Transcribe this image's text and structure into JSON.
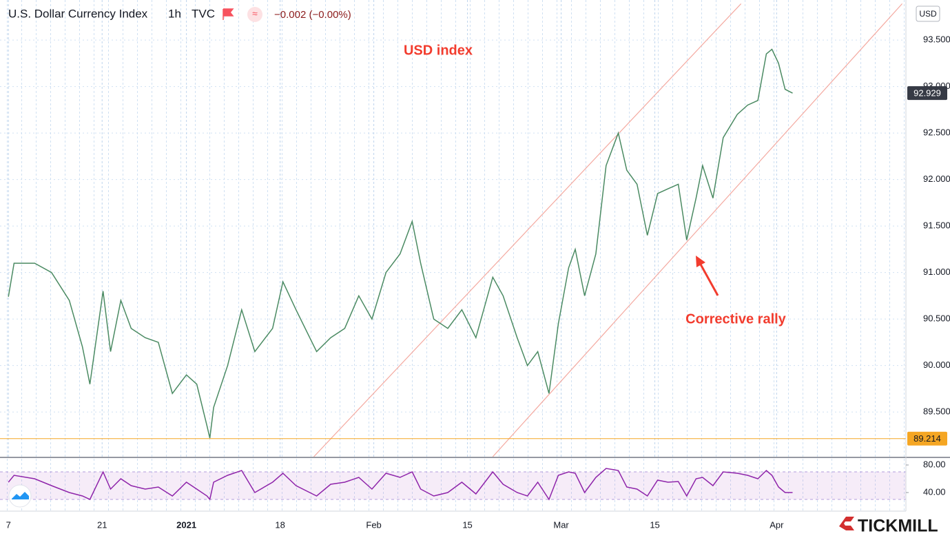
{
  "header": {
    "title": "U.S. Dollar Currency Index",
    "interval": "1h",
    "source": "TVC",
    "change": "−0.002 (−0.00%)",
    "currency": "USD",
    "brand": "TICKMILL"
  },
  "chart_data": [
    {
      "type": "line",
      "color": "#4a8a62",
      "annotations": [
        "USD index",
        "Corrective rally"
      ],
      "annotation_color": "#f23c2e",
      "x": [
        0.0,
        0.6,
        2.8,
        4.6,
        6.5,
        7.9,
        8.7,
        10.1,
        10.9,
        12.0,
        13.1,
        14.6,
        16.0,
        17.5,
        19.0,
        20.1,
        21.2,
        21.5,
        21.9,
        23.4,
        24.9,
        26.3,
        28.2,
        29.3,
        30.7,
        32.9,
        34.4,
        35.9,
        37.4,
        38.8,
        40.3,
        41.8,
        43.1,
        44.0,
        45.4,
        46.9,
        48.4,
        49.9,
        51.7,
        52.8,
        54.3,
        55.4,
        56.5,
        57.7,
        58.7,
        59.8,
        60.5,
        61.5,
        62.7,
        63.8,
        65.1,
        66.0,
        67.1,
        68.2,
        69.3,
        70.4,
        71.5,
        72.4,
        73.4,
        74.1,
        75.2,
        76.3,
        77.8,
        78.9,
        80.0,
        80.9,
        81.5,
        82.2,
        82.9,
        83.7
      ],
      "values": [
        90.74,
        91.1,
        91.1,
        91.0,
        90.7,
        90.2,
        89.8,
        90.8,
        90.15,
        90.7,
        90.4,
        90.3,
        90.25,
        89.7,
        89.9,
        89.8,
        89.35,
        89.22,
        89.55,
        90.0,
        90.6,
        90.15,
        90.4,
        90.9,
        90.6,
        90.15,
        90.3,
        90.4,
        90.75,
        90.5,
        91.0,
        91.2,
        91.55,
        91.1,
        90.5,
        90.4,
        90.6,
        90.3,
        90.95,
        90.75,
        90.3,
        90.0,
        90.15,
        89.7,
        90.45,
        91.05,
        91.25,
        90.75,
        91.2,
        92.15,
        92.5,
        92.1,
        91.95,
        91.4,
        91.85,
        91.9,
        91.95,
        91.35,
        91.8,
        92.15,
        91.8,
        92.45,
        92.7,
        92.8,
        92.85,
        93.35,
        93.4,
        93.25,
        92.97,
        92.929
      ],
      "last_color": "#363a45",
      "hline": {
        "value": 89.214,
        "color": "#f5a623"
      },
      "channels": [
        {
          "x": [
            32.6,
            78.2
          ],
          "y": [
            89.02,
            93.89
          ]
        },
        {
          "x": [
            51.7,
            95.4
          ],
          "y": [
            89.02,
            93.89
          ]
        }
      ],
      "channel_color": "#f4a9a0",
      "xlim": [
        -0.9,
        95.8
      ],
      "xticks": [
        {
          "value": 0,
          "label": "7"
        },
        {
          "value": 10,
          "label": "21"
        },
        {
          "value": 19,
          "label": "2021"
        },
        {
          "value": 29,
          "label": "18"
        },
        {
          "value": 39,
          "label": "Feb"
        },
        {
          "value": 49,
          "label": "15"
        },
        {
          "value": 59,
          "label": "Mar"
        },
        {
          "value": 69,
          "label": "15"
        },
        {
          "value": 82,
          "label": "Apr"
        }
      ],
      "ylim": [
        89.02,
        93.93
      ],
      "yticks": [
        {
          "value": 89.5,
          "label": "89.500"
        },
        {
          "value": 90,
          "label": "90.000"
        },
        {
          "value": 90.5,
          "label": "90.500"
        },
        {
          "value": 91,
          "label": "91.000"
        },
        {
          "value": 91.5,
          "label": "91.500"
        },
        {
          "value": 92,
          "label": "92.000"
        },
        {
          "value": 92.5,
          "label": "92.500"
        },
        {
          "value": 93,
          "label": "93.000"
        },
        {
          "value": 93.5,
          "label": "93.500"
        }
      ],
      "grid": true
    },
    {
      "type": "line",
      "color": "#8e24aa",
      "x": [
        0.0,
        0.6,
        2.8,
        4.6,
        6.5,
        7.9,
        8.7,
        10.1,
        10.9,
        12.0,
        13.1,
        14.6,
        16.0,
        17.5,
        19.0,
        20.1,
        21.2,
        21.5,
        21.9,
        23.4,
        24.9,
        26.3,
        28.2,
        29.3,
        30.7,
        32.9,
        34.4,
        35.9,
        37.4,
        38.8,
        40.3,
        41.8,
        43.1,
        44.0,
        45.4,
        46.9,
        48.4,
        49.9,
        51.7,
        52.8,
        54.3,
        55.4,
        56.5,
        57.7,
        58.7,
        59.8,
        60.5,
        61.5,
        62.7,
        63.8,
        65.1,
        66.0,
        67.1,
        68.2,
        69.3,
        70.4,
        71.5,
        72.4,
        73.4,
        74.1,
        75.2,
        76.3,
        77.8,
        78.9,
        80.0,
        80.9,
        81.5,
        82.2,
        82.9,
        83.7
      ],
      "values": [
        55,
        65,
        60,
        50,
        40,
        35,
        30,
        70,
        45,
        60,
        50,
        45,
        48,
        35,
        55,
        45,
        35,
        30,
        55,
        65,
        72,
        40,
        55,
        68,
        50,
        35,
        52,
        55,
        62,
        45,
        68,
        62,
        70,
        45,
        35,
        40,
        55,
        38,
        70,
        52,
        40,
        35,
        55,
        30,
        65,
        70,
        68,
        40,
        62,
        75,
        72,
        48,
        45,
        35,
        58,
        55,
        56,
        35,
        60,
        62,
        50,
        70,
        68,
        65,
        60,
        72,
        65,
        48,
        40,
        40
      ],
      "bands": [
        30,
        70
      ],
      "xlim": [
        -0.9,
        95.8
      ],
      "ylim": [
        13,
        90
      ],
      "yticks": [
        {
          "value": 40,
          "label": "40.00"
        },
        {
          "value": 80,
          "label": "80.00"
        }
      ]
    }
  ]
}
